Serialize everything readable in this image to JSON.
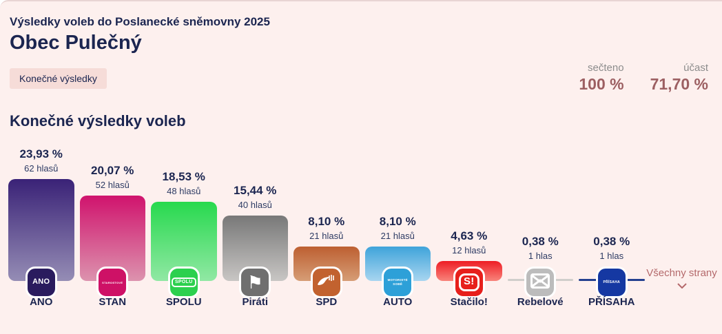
{
  "header": {
    "subtitle": "Výsledky voleb do Poslanecké sněmovny 2025",
    "title": "Obec Pulečný",
    "badge": "Konečné výsledky",
    "stats": [
      {
        "label": "sečteno",
        "value": "100 %"
      },
      {
        "label": "účast",
        "value": "71,70 %"
      }
    ]
  },
  "section": {
    "heading": "Konečné výsledky voleb"
  },
  "colors": {
    "background": "#fdf0ee",
    "text_navy": "#1b2550",
    "accent_maroon": "#9c5f62",
    "muted_label": "#8c8c8c",
    "more_link": "#b4696b",
    "badge_bg": "#f6dcd8"
  },
  "chart_data": {
    "type": "bar",
    "title": "Konečné výsledky voleb",
    "ylabel": "%",
    "ylim": [
      0,
      25
    ],
    "grid": false,
    "legend": "none",
    "categories": [
      "ANO",
      "STAN",
      "SPOLU",
      "Piráti",
      "SPD",
      "AUTO",
      "Stačilo!",
      "Rebelové",
      "PŘÍSAHA"
    ],
    "series": [
      {
        "name": "percent",
        "values": [
          23.93,
          20.07,
          18.53,
          15.44,
          8.1,
          8.1,
          4.63,
          0.38,
          0.38
        ]
      },
      {
        "name": "votes",
        "values": [
          62,
          52,
          48,
          40,
          21,
          21,
          12,
          1,
          1
        ]
      }
    ],
    "more_label": "Všechny strany",
    "parties": [
      {
        "id": "ano",
        "name": "ANO",
        "percent_label": "23,93 %",
        "votes_label": "62 hlasů",
        "value": 23.93,
        "bar_top": "#3a2277",
        "bar_bottom": "#958db5",
        "logo_bg": "#2a1b5e",
        "logo_kind": "text",
        "logo_lines": [
          "ANO"
        ],
        "logo_size": 11
      },
      {
        "id": "stan",
        "name": "STAN",
        "percent_label": "20,07 %",
        "votes_label": "52 hlasů",
        "value": 20.07,
        "bar_top": "#d0136d",
        "bar_bottom": "#dc93ae",
        "logo_bg": "#ce1166",
        "logo_kind": "text",
        "logo_lines": [
          "STAROSTOVÉ"
        ],
        "logo_size": 4
      },
      {
        "id": "spolu",
        "name": "SPOLU",
        "percent_label": "18,53 %",
        "votes_label": "48 hlasů",
        "value": 18.53,
        "bar_top": "#27d94e",
        "bar_bottom": "#91e8a4",
        "logo_bg": "#2cd04e",
        "logo_kind": "framed-text",
        "logo_lines": [
          "SPOLU"
        ],
        "logo_size": 7
      },
      {
        "id": "pirati",
        "name": "Piráti",
        "percent_label": "15,44 %",
        "votes_label": "40 hlasů",
        "value": 15.44,
        "bar_top": "#787878",
        "bar_bottom": "#c8c6c4",
        "logo_bg": "#6f6f6f",
        "logo_kind": "pirate-flag",
        "logo_lines": [],
        "logo_size": 0
      },
      {
        "id": "spd",
        "name": "SPD",
        "percent_label": "8,10 %",
        "votes_label": "21 hlasů",
        "value": 8.1,
        "bar_top": "#bd5f31",
        "bar_bottom": "#d69d76",
        "logo_bg": "#c2622f",
        "logo_kind": "bird",
        "logo_lines": [],
        "logo_size": 0
      },
      {
        "id": "auto",
        "name": "AUTO",
        "percent_label": "8,10 %",
        "votes_label": "21 hlasů",
        "value": 8.1,
        "bar_top": "#3fa3da",
        "bar_bottom": "#a8d5f0",
        "logo_bg": "#2da0d8",
        "logo_kind": "text",
        "logo_lines": [
          "MOTORISTÉ",
          "SOBĚ"
        ],
        "logo_size": 4.5
      },
      {
        "id": "stacilo",
        "name": "Stačilo!",
        "percent_label": "4,63 %",
        "votes_label": "12 hlasů",
        "value": 4.63,
        "bar_top": "#ee1d24",
        "bar_bottom": "#f8847c",
        "logo_bg": "#e7201c",
        "logo_kind": "s-badge",
        "logo_lines": [
          "S!"
        ],
        "logo_size": 14
      },
      {
        "id": "rebelove",
        "name": "Rebelové",
        "percent_label": "0,38 %",
        "votes_label": "1 hlas",
        "value": 0.38,
        "bar_top": "#d0cecb",
        "bar_bottom": "#d0cecb",
        "logo_bg": "#bcbcbc",
        "logo_kind": "envelope",
        "logo_lines": [],
        "logo_size": 0
      },
      {
        "id": "prisaha",
        "name": "PŘÍSAHA",
        "percent_label": "0,38 %",
        "votes_label": "1 hlas",
        "value": 0.38,
        "bar_top": "#23408f",
        "bar_bottom": "#23408f",
        "logo_bg": "#1538a2",
        "logo_kind": "text",
        "logo_lines": [
          "PŘÍSAHA"
        ],
        "logo_size": 5
      }
    ]
  }
}
